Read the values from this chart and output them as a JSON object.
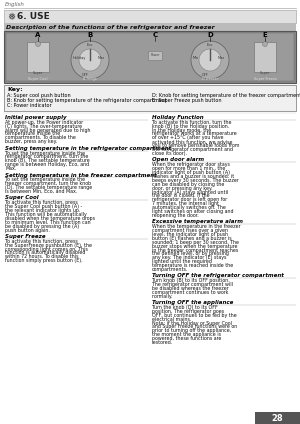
{
  "page_num": "28",
  "language": "English",
  "section_title": "6. USE",
  "subtitle": "Description of the functions of the refrigerator and freezer",
  "left_sections": [
    {
      "title": "Initial power supply",
      "body": "At power-up, the Power indicator (C) lights. The over-temperature alarm will be generated due to high temperature inside the compartments. To disable the buzzer, press any key."
    },
    {
      "title": "Setting temperature in the refrigerator compartment",
      "body": "To set the temperature inside the refrigerator compartment, turn the knob (B). The settable temperature range is between Holiday, Eco, and Max."
    },
    {
      "title": "Setting temperature in the freezer compartment",
      "body": "To set the temperature inside the freezer compartment, turn the knob (D). The settable temperature range is between Min, Eco, and Max."
    },
    {
      "title": "Super Cool",
      "body": "To activate this function, press the Super Cool push button (A) - the relevant indicator lights up. This function will be automatically disabled when the temperature drops to minimum level. This function can be disabled by pressing the (A) push button again."
    },
    {
      "title": "Super Freeze",
      "body": "To activate this function, press the SuperFreeze pushbutton (E), the corresponding light comes on. This function is automatically disabled within 72 hours. To disable this function simply press button (E)."
    }
  ],
  "right_sections": [
    {
      "title": "Holiday Function",
      "body": "To activate this function, turn the knob (B) to the Holiday position. In the Holiday mode, the refrigerator works at a temperature of over +15°C (after you have activated this function, we advise you to remove perishable foods from the refrigerator compartment and close its door)."
    },
    {
      "title": "Open door alarm",
      "body": "When the refrigerator door stays open for more than 1 min., the indicator light of push button (A) flashes and a buzzer is sounded: it beeps every 30 seconds. The buzzer can be disabled by closing the door, or pressing any key. Indicator (A) stays slighted until the door is closed. If the refrigerator door is left open for 7 minutes, the internal light automatically switches off. The light switches on after closing and reopening the door."
    },
    {
      "title": "Excessive temperature alarm",
      "body": "When the temperature in the freezer compartment rises over a given level, the indicator light of push button (E) flashes and a buzzer is sounded: 1 beep per 30 second. The buzzer stops when the temperature in the freezer compartment reaches the defined level, or by pressing any key. The indicator (E) stays lighted until the required temperature is reached inside the compartments."
    },
    {
      "title": "Turning OFF the refrigerator compartment",
      "body": "Turn knob (B) to its OFF position. The refrigerator compartment will be disabled whereas the freezer compartment continues to work normally."
    },
    {
      "title": "Turning OFF the appliance",
      "body": "Turn the knob (D) to its OFF position. The refrigerator goes OFF, but continues to be fed by the electrical mains.\nNote: if the Holiday or Super Cool and Super Freeze functions were on prior to turning off the appliance, the moment the appliance is powered, these functions are restored."
    }
  ],
  "bg_color": "#ffffff",
  "subtitle_bg": "#bbbbbb",
  "panel_bg": "#999999",
  "key_bg": "#f0f0f0",
  "page_num_bg": "#555555"
}
